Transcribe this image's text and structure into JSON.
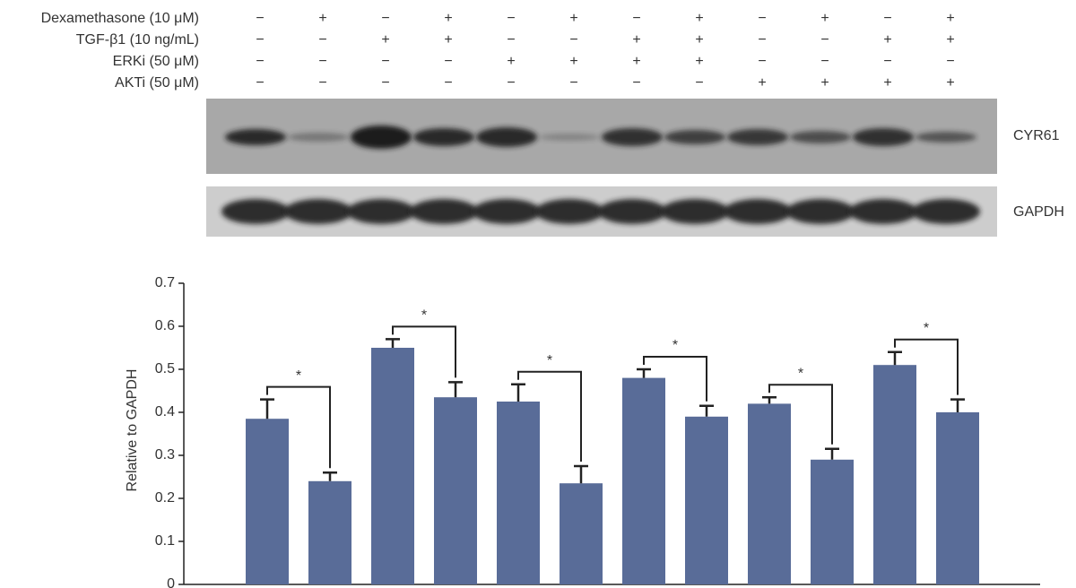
{
  "treatments": {
    "rows": [
      {
        "label": "Dexamethasone (10 μM)",
        "signs": [
          "−",
          "+",
          "−",
          "+",
          "−",
          "+",
          "−",
          "+",
          "−",
          "+",
          "−",
          "+"
        ]
      },
      {
        "label": "TGF-β1 (10 ng/mL)",
        "signs": [
          "−",
          "−",
          "+",
          "+",
          "−",
          "−",
          "+",
          "+",
          "−",
          "−",
          "+",
          "+"
        ]
      },
      {
        "label": "ERKi  (50 μM)",
        "signs": [
          "−",
          "−",
          "−",
          "−",
          "+",
          "+",
          "+",
          "+",
          "−",
          "−",
          "−",
          "−"
        ]
      },
      {
        "label": "AKTi  (50 μM)",
        "signs": [
          "−",
          "−",
          "−",
          "−",
          "−",
          "−",
          "−",
          "−",
          "+",
          "+",
          "+",
          "+"
        ]
      }
    ]
  },
  "blots": {
    "labels": [
      "CYR61",
      "GAPDH"
    ]
  },
  "chart_data": {
    "type": "bar",
    "y_label": "Relative to GAPDH",
    "values": [
      0.385,
      0.24,
      0.55,
      0.435,
      0.425,
      0.235,
      0.48,
      0.39,
      0.42,
      0.29,
      0.51,
      0.4
    ],
    "errors": [
      0.045,
      0.02,
      0.02,
      0.035,
      0.04,
      0.04,
      0.02,
      0.025,
      0.015,
      0.025,
      0.03,
      0.03
    ],
    "color": "#596c98",
    "ylim": [
      0,
      0.7
    ],
    "yticks": [
      0,
      0.1,
      0.2,
      0.3,
      0.4,
      0.5,
      0.6,
      0.7
    ],
    "annotations": [
      "*",
      "*",
      "*",
      "*",
      "*",
      "*"
    ]
  }
}
